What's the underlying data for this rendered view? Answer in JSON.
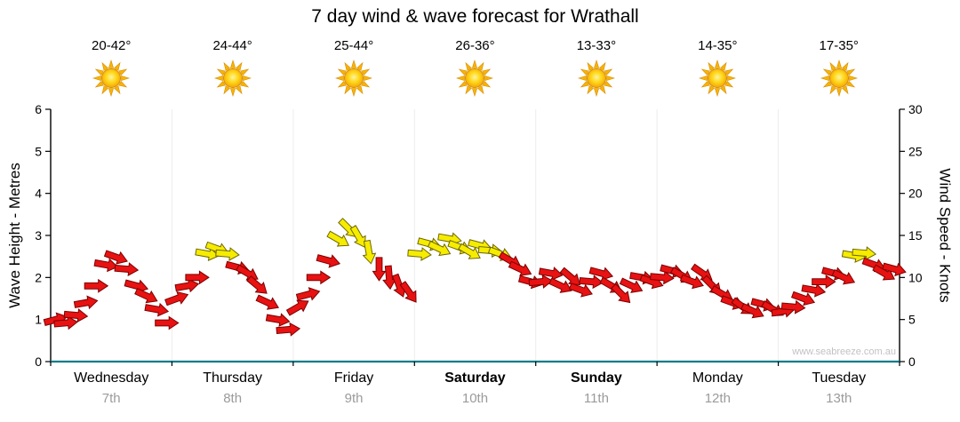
{
  "title": "7 day wind & wave forecast for Wrathall",
  "watermark": "www.seabreeze.com.au",
  "axes": {
    "left_label": "Wave Height - Metres",
    "right_label": "Wind Speed - Knots",
    "left_ticks": [
      0,
      1,
      2,
      3,
      4,
      5,
      6
    ],
    "right_ticks": [
      0,
      5,
      10,
      15,
      20,
      25,
      30
    ]
  },
  "forecast": {
    "temps": [
      "20-42°",
      "24-44°",
      "25-44°",
      "26-36°",
      "13-33°",
      "14-35°",
      "17-35°"
    ],
    "days": [
      {
        "name": "Wednesday",
        "date": "7th",
        "weekend": false
      },
      {
        "name": "Thursday",
        "date": "8th",
        "weekend": false
      },
      {
        "name": "Friday",
        "date": "9th",
        "weekend": false
      },
      {
        "name": "Saturday",
        "date": "10th",
        "weekend": true
      },
      {
        "name": "Sunday",
        "date": "11th",
        "weekend": true
      },
      {
        "name": "Monday",
        "date": "12th",
        "weekend": false
      },
      {
        "name": "Tuesday",
        "date": "13th",
        "weekend": false
      }
    ]
  },
  "chart_data": {
    "type": "wind-arrow-series",
    "title": "7 day wind & wave forecast for Wrathall",
    "categories": [
      "Wednesday 7th",
      "Thursday 8th",
      "Friday 9th",
      "Saturday 10th",
      "Sunday 11th",
      "Monday 12th",
      "Tuesday 13th"
    ],
    "ylim_wave": [
      0,
      6
    ],
    "ylim_knots": [
      0,
      30
    ],
    "points_per_day": 12,
    "speeds_knots_by_day": [
      [
        5.0,
        4.6,
        5.5,
        7.0,
        9.0,
        11.5,
        12.4,
        11.0,
        9.0,
        7.8,
        6.2,
        4.6
      ],
      [
        7.5,
        9.0,
        10.0,
        12.8,
        13.4,
        12.8,
        11.2,
        10.5,
        9.0,
        7.0,
        5.0,
        3.8
      ],
      [
        6.5,
        8.0,
        10.0,
        12.0,
        14.5,
        15.8,
        14.8,
        13.0,
        11.0,
        10.0,
        9.0,
        8.2
      ],
      [
        12.8,
        14.0,
        13.4,
        14.6,
        13.6,
        13.0,
        13.8,
        13.2,
        12.8,
        12.0,
        11.0,
        9.5
      ],
      [
        9.5,
        10.5,
        9.0,
        10.0,
        8.5,
        9.5,
        10.5,
        9.0,
        8.0,
        9.0,
        10.0,
        9.5
      ],
      [
        10.0,
        10.8,
        10.2,
        9.5,
        10.5,
        9.0,
        8.0,
        7.0,
        6.5,
        6.0,
        6.8,
        6.2
      ],
      [
        6.0,
        6.5,
        7.5,
        8.5,
        9.5,
        10.5,
        10.0,
        12.6,
        12.9,
        11.5,
        10.5,
        11.0
      ]
    ],
    "dirs_deg_by_day": [
      [
        75,
        85,
        95,
        80,
        90,
        100,
        110,
        95,
        105,
        115,
        100,
        90
      ],
      [
        70,
        80,
        90,
        100,
        110,
        95,
        105,
        120,
        130,
        115,
        100,
        85
      ],
      [
        60,
        75,
        90,
        105,
        120,
        135,
        150,
        170,
        180,
        175,
        160,
        145
      ],
      [
        95,
        105,
        115,
        100,
        110,
        120,
        105,
        95,
        110,
        120,
        115,
        105
      ],
      [
        85,
        100,
        115,
        130,
        110,
        95,
        105,
        120,
        135,
        115,
        100,
        110
      ],
      [
        95,
        105,
        120,
        110,
        125,
        135,
        120,
        110,
        125,
        115,
        105,
        120
      ],
      [
        80,
        95,
        110,
        100,
        90,
        105,
        115,
        100,
        95,
        110,
        120,
        105
      ]
    ],
    "colors": {
      "low": "#e81212",
      "high": "#f6ec00",
      "low_stroke": "#7c0000",
      "high_stroke": "#6f6700",
      "threshold_knots": 12.5,
      "baseline": "#077c8a",
      "grid": "#ededed",
      "axis": "#000000",
      "sun_core": "#ffd91c",
      "sun_ray": "#f7b500"
    }
  }
}
